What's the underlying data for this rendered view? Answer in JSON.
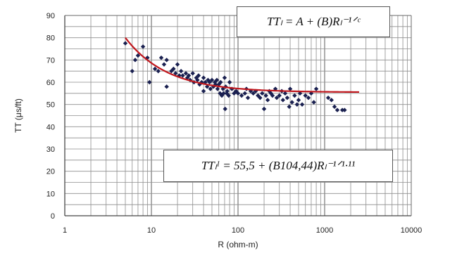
{
  "chart_data": {
    "type": "scatter",
    "title": "",
    "xlabel": "R (ohm-m)",
    "ylabel": "TT (μs/ft)",
    "x_scale": "log",
    "xlim": [
      1,
      10000
    ],
    "ylim": [
      0,
      90
    ],
    "x_ticks": [
      "1",
      "10",
      "100",
      "1000",
      "10000"
    ],
    "y_ticks": [
      "0",
      "10",
      "20",
      "30",
      "40",
      "50",
      "60",
      "70",
      "80",
      "90"
    ],
    "grid": true,
    "series": [
      {
        "points": [
          [
            5,
            77.5
          ],
          [
            6,
            65
          ],
          [
            6.5,
            70
          ],
          [
            7,
            72
          ],
          [
            8,
            76
          ],
          [
            9,
            71
          ],
          [
            9.5,
            60
          ],
          [
            11,
            66
          ],
          [
            12,
            65
          ],
          [
            13,
            71
          ],
          [
            14,
            68
          ],
          [
            15,
            58
          ],
          [
            15,
            70
          ],
          [
            17,
            65
          ],
          [
            18,
            66
          ],
          [
            19,
            64
          ],
          [
            20,
            68
          ],
          [
            21,
            63
          ],
          [
            22,
            65
          ],
          [
            23,
            63
          ],
          [
            25,
            64
          ],
          [
            26,
            62
          ],
          [
            27,
            63
          ],
          [
            28,
            61
          ],
          [
            30,
            64
          ],
          [
            31,
            60
          ],
          [
            33,
            62
          ],
          [
            34,
            61
          ],
          [
            35,
            63
          ],
          [
            36,
            59
          ],
          [
            38,
            60
          ],
          [
            40,
            56
          ],
          [
            40,
            62
          ],
          [
            42,
            60
          ],
          [
            44,
            58
          ],
          [
            45,
            61
          ],
          [
            47,
            60
          ],
          [
            48,
            57
          ],
          [
            50,
            61
          ],
          [
            52,
            58
          ],
          [
            54,
            60
          ],
          [
            55,
            59
          ],
          [
            57,
            61
          ],
          [
            58,
            57
          ],
          [
            60,
            59
          ],
          [
            62,
            55
          ],
          [
            63,
            60
          ],
          [
            65,
            54
          ],
          [
            67,
            57
          ],
          [
            68,
            55
          ],
          [
            70,
            62
          ],
          [
            71,
            48
          ],
          [
            72,
            58
          ],
          [
            74,
            55
          ],
          [
            75,
            56
          ],
          [
            78,
            54
          ],
          [
            80,
            60
          ],
          [
            85,
            57
          ],
          [
            90,
            55
          ],
          [
            95,
            56
          ],
          [
            100,
            55
          ],
          [
            110,
            54
          ],
          [
            120,
            55
          ],
          [
            125,
            57
          ],
          [
            130,
            53
          ],
          [
            140,
            56
          ],
          [
            150,
            55
          ],
          [
            160,
            56
          ],
          [
            170,
            54
          ],
          [
            180,
            53
          ],
          [
            190,
            55
          ],
          [
            200,
            48
          ],
          [
            210,
            54
          ],
          [
            220,
            52
          ],
          [
            230,
            56
          ],
          [
            240,
            55
          ],
          [
            250,
            54
          ],
          [
            270,
            57
          ],
          [
            280,
            53
          ],
          [
            300,
            54
          ],
          [
            320,
            56
          ],
          [
            330,
            52
          ],
          [
            350,
            55
          ],
          [
            370,
            53
          ],
          [
            390,
            49
          ],
          [
            400,
            57
          ],
          [
            420,
            51
          ],
          [
            450,
            54
          ],
          [
            480,
            50
          ],
          [
            500,
            52
          ],
          [
            520,
            55
          ],
          [
            550,
            50
          ],
          [
            600,
            54
          ],
          [
            650,
            53
          ],
          [
            700,
            55
          ],
          [
            750,
            51
          ],
          [
            800,
            57
          ],
          [
            1100,
            53
          ],
          [
            1200,
            52
          ],
          [
            1300,
            49
          ],
          [
            1400,
            47.5
          ],
          [
            1600,
            47.5
          ],
          [
            1700,
            47.5
          ]
        ]
      }
    ],
    "fit_curve": {
      "A": 55.5,
      "B": 104.44,
      "C": 1.11,
      "x_range": [
        5,
        2500
      ],
      "color": "#c0161c"
    },
    "point_color": "#1a2050",
    "annotations": {
      "general": "TTₗ = A + (B)Rₗ⁻¹ᐟᶜ",
      "fitted": "TTₗᴵ = 55,5 + (B104,44)Rₗ⁻¹ᐟ¹·¹¹"
    }
  }
}
